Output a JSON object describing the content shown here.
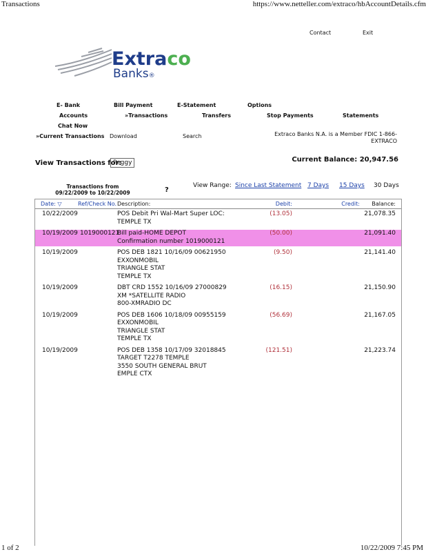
{
  "print_header": {
    "title": "Transactions",
    "url": "https://www.netteller.com/extraco/hbAccountDetails.cfm"
  },
  "top_links": [
    "Contact",
    "Exit"
  ],
  "logo": {
    "name_start": "Extra",
    "name_end": "co",
    "sub": "Banks",
    "mark": "®"
  },
  "nav": {
    "row1": [
      "E- Bank",
      "Bill Payment",
      "E-Statement",
      "Options"
    ],
    "row2": [
      "Accounts",
      "»Transactions",
      "Transfers",
      "Stop Payments",
      "Statements"
    ],
    "row3": [
      "Chat Now"
    ]
  },
  "subnav": [
    "»Current Transactions",
    "Download",
    "Search"
  ],
  "fdic_note": "Extraco Banks N.A. is a Member FDIC 1-866-EXTRACO",
  "view_for": {
    "label": "View Transactions for:",
    "selected": "Peggy"
  },
  "current_balance": {
    "label": "Current Balance:",
    "value": "20,947.56"
  },
  "range_text": "Transactions from 09/22/2009 to 10/22/2009",
  "help": "?",
  "view_range": {
    "label": "View Range:",
    "options": [
      "Since Last Statement",
      "7 Days",
      "15 Days",
      "30 Days"
    ]
  },
  "table": {
    "headers": [
      "Date: ▽",
      "Ref/Check No.",
      "Description:",
      "Debit:",
      "Credit:",
      "Balance:"
    ],
    "rows": [
      {
        "date": "10/22/2009",
        "description": [
          "POS Debit Pri Wal-Mart Super LOC:",
          "TEMPLE TX"
        ],
        "debit": "(13.05)",
        "balance": "21,078.35"
      },
      {
        "date": "10/19/2009",
        "ref": "1019000121",
        "description": [
          "Bill paid-HOME DEPOT",
          "Confirmation number 1019000121"
        ],
        "debit": "(50.00)",
        "balance": "21,091.40",
        "highlighted": true
      },
      {
        "date": "10/19/2009",
        "description": [
          "POS DEB 1821 10/16/09 00621950",
          "EXXONMOBIL",
          "TRIANGLE STAT",
          "TEMPLE TX"
        ],
        "debit": "(9.50)",
        "balance": "21,141.40"
      },
      {
        "date": "10/19/2009",
        "description": [
          "DBT CRD 1552 10/16/09 27000829",
          "XM *SATELLITE RADIO",
          "800-XMRADIO DC"
        ],
        "debit": "(16.15)",
        "balance": "21,150.90"
      },
      {
        "date": "10/19/2009",
        "description": [
          "POS DEB 1606 10/18/09 00955159",
          "EXXONMOBIL",
          "TRIANGLE STAT",
          "TEMPLE TX"
        ],
        "debit": "(56.69)",
        "balance": "21,167.05"
      },
      {
        "date": "10/19/2009",
        "description": [
          "POS DEB 1358 10/17/09 32018845",
          "TARGET T2278 TEMPLE",
          "3550 SOUTH GENERAL BRUT",
          "EMPLE CTX"
        ],
        "debit": "(121.51)",
        "balance": "21,223.74"
      }
    ]
  },
  "print_footer": {
    "page": "1 of 2",
    "datetime": "10/22/2009 7:45 PM"
  }
}
